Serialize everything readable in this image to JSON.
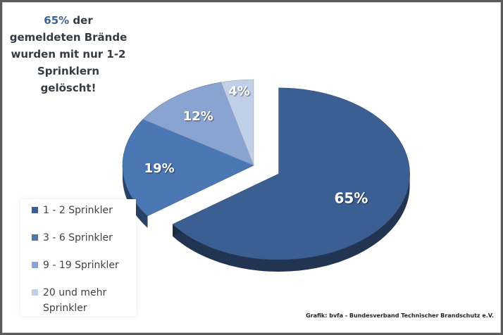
{
  "headline": {
    "percent": "65%",
    "line1_rest": " der",
    "line2": "gemeldeten Brände",
    "line3": "wurden mit nur 1-2",
    "line4": "Sprinklern gelöscht!"
  },
  "credit": "Grafik: bvfa - Bundesverband Technischer Brandschutz e.V.",
  "chart_data": {
    "type": "pie",
    "title": "",
    "legend_position": "bottom-left",
    "slices": [
      {
        "label": "1 - 2 Sprinkler",
        "value": 65,
        "display": "65%",
        "color": "#3c5f93",
        "exploded": true
      },
      {
        "label": "3 - 6 Sprinkler",
        "value": 19,
        "display": "19%",
        "color": "#4b77b5",
        "exploded": false
      },
      {
        "label": "9 - 19 Sprinkler",
        "value": 12,
        "display": "12%",
        "color": "#8aa4d2",
        "exploded": false
      },
      {
        "label": "20 und mehr Sprinkler",
        "value": 4,
        "display": "4%",
        "color": "#c2cfe8",
        "exploded": false
      }
    ]
  }
}
